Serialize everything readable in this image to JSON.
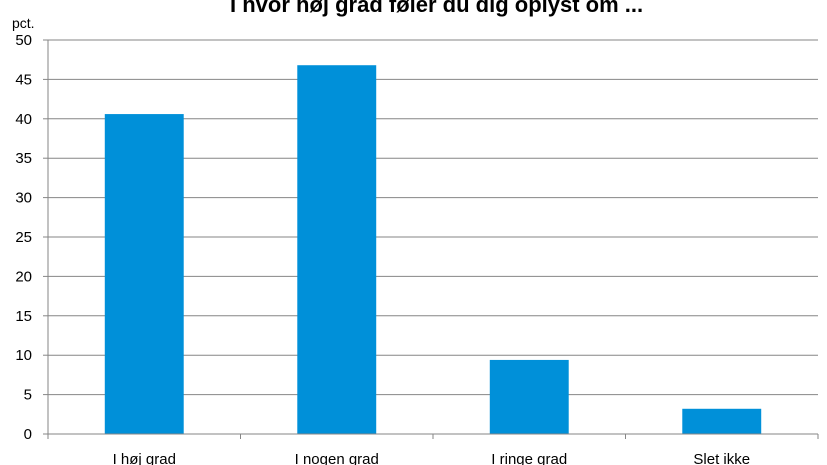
{
  "chart_data": {
    "type": "bar",
    "title": "I hvor høj grad føler du dig oplyst om ...",
    "ylabel": "pct.",
    "xlabel": "",
    "categories": [
      "I høj grad",
      "I nogen grad",
      "I ringe grad",
      "Slet ikke"
    ],
    "values": [
      40.6,
      46.8,
      9.4,
      3.2
    ],
    "ylim": [
      0,
      50
    ],
    "yticks": [
      0,
      5,
      10,
      15,
      20,
      25,
      30,
      35,
      40,
      45,
      50
    ],
    "grid": true,
    "legend": "none",
    "bar_color": "#0090d9"
  }
}
